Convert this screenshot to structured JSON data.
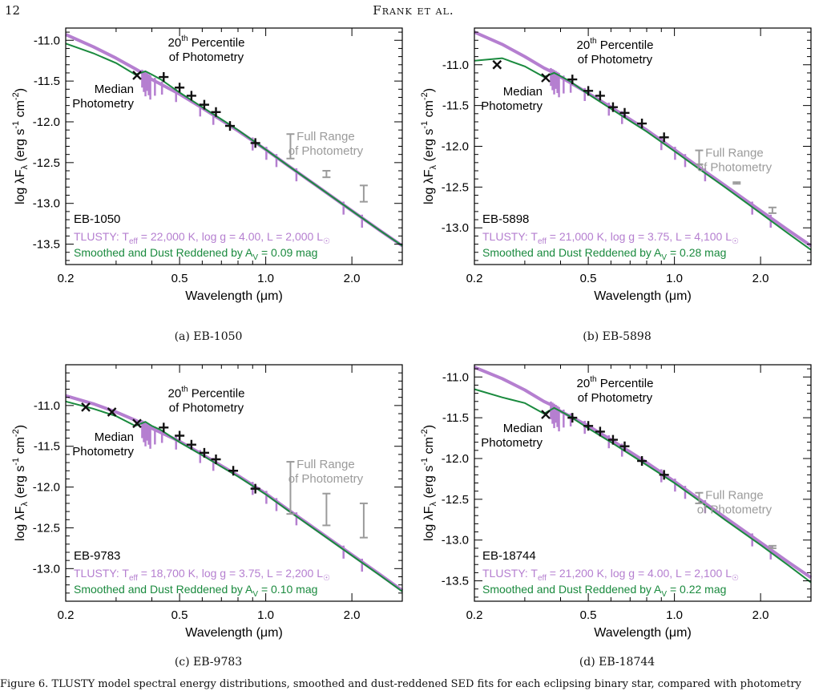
{
  "page": {
    "number": "12",
    "running_head": "Frank et al."
  },
  "caption": "Figure 6. TLUSTY model spectral energy distributions, smoothed and dust-reddened SED fits for each eclipsing binary star, compared with photometry",
  "colors": {
    "tlusty": "#b57fd0",
    "smoothed": "#1a8a3e",
    "photometry": "#111111",
    "full_range": "#9b9b9b",
    "axes": "#000000"
  },
  "common": {
    "xlabel": "Wavelength (μm)",
    "xticks": [
      0.2,
      0.5,
      1.0,
      2.0
    ],
    "xtick_labels": [
      "0.2",
      "0.5",
      "1.0",
      "2.0"
    ],
    "xlim": [
      0.2,
      3.0
    ],
    "x_scale": "log",
    "ylabel_parts": {
      "main": "log λF",
      "sub_lambda": "λ",
      "paren_open": " (erg s",
      "s_exp": "-1",
      "cm": " cm",
      "cm_exp": "-2",
      "paren_close": ")"
    },
    "label_median": [
      "Median",
      "Photometry"
    ],
    "label_percentile": {
      "num": "20",
      "sup": "th",
      "line1": " Percentile",
      "line2": "of Photometry"
    },
    "label_full_range": [
      "Full Range",
      "of Photometry"
    ],
    "tlusty_prefix": "TLUSTY: T",
    "tlusty_sub": "eff",
    "smoothed_prefix": "Smoothed and Dust Reddened by A",
    "smoothed_sub": "V",
    "lsun_unit": "L"
  },
  "chart_data": [
    {
      "type": "line",
      "subcaption": "(a) EB-1050",
      "star": "EB-1050",
      "tlusty_params": {
        "teff": " = 22,000 K, log g = 4.00, L = 2,000 L"
      },
      "av_text": " = 0.09 mag",
      "ylim": [
        -13.75,
        -10.85
      ],
      "yticks": [
        -11.0,
        -11.5,
        -12.0,
        -12.5,
        -13.0,
        -13.5
      ],
      "ytick_labels": [
        "-11.0",
        "-11.5",
        "-12.0",
        "-12.5",
        "-13.0",
        "-13.5"
      ],
      "series": [
        {
          "name": "TLUSTY",
          "x": [
            0.2,
            0.25,
            0.3,
            0.35,
            0.37,
            0.4,
            0.5,
            0.6,
            0.7,
            0.8,
            1.0,
            1.2,
            1.5,
            2.0,
            2.5,
            3.0
          ],
          "y": [
            -10.93,
            -11.08,
            -11.22,
            -11.35,
            -11.4,
            -11.48,
            -11.66,
            -11.83,
            -11.98,
            -12.11,
            -12.34,
            -12.54,
            -12.78,
            -13.09,
            -13.33,
            -13.52
          ]
        },
        {
          "name": "Smoothed",
          "x": [
            0.2,
            0.25,
            0.3,
            0.35,
            0.38,
            0.4,
            0.43,
            0.5,
            0.6,
            0.7,
            0.8,
            1.0,
            1.2,
            1.5,
            2.0,
            2.5,
            3.0
          ],
          "y": [
            -11.04,
            -11.16,
            -11.28,
            -11.42,
            -11.38,
            -11.42,
            -11.48,
            -11.64,
            -11.82,
            -11.97,
            -12.1,
            -12.34,
            -12.54,
            -12.78,
            -13.09,
            -13.33,
            -13.52
          ]
        }
      ],
      "median_points": {
        "x": [
          0.355
        ],
        "y": [
          -11.43
        ]
      },
      "percentile_points": {
        "x": [
          0.44,
          0.5,
          0.55,
          0.61,
          0.67,
          0.75,
          0.92
        ],
        "y": [
          -11.45,
          -11.58,
          -11.68,
          -11.79,
          -11.88,
          -12.05,
          -12.26
        ]
      },
      "full_range": [
        {
          "x": 1.22,
          "low": -12.45,
          "high": -12.15
        },
        {
          "x": 1.63,
          "low": -12.68,
          "high": -12.6
        },
        {
          "x": 2.2,
          "low": -12.98,
          "high": -12.78
        }
      ]
    },
    {
      "type": "line",
      "subcaption": "(b) EB-5898",
      "star": "EB-5898",
      "tlusty_params": {
        "teff": " = 21,000 K, log g = 3.75, L = 4,100 L"
      },
      "av_text": " = 0.28 mag",
      "ylim": [
        -13.45,
        -10.55
      ],
      "yticks": [
        -11.0,
        -11.5,
        -12.0,
        -12.5,
        -13.0
      ],
      "ytick_labels": [
        "-11.0",
        "-11.5",
        "-12.0",
        "-12.5",
        "-13.0"
      ],
      "series": [
        {
          "name": "TLUSTY",
          "x": [
            0.2,
            0.25,
            0.3,
            0.35,
            0.37,
            0.4,
            0.5,
            0.6,
            0.7,
            0.8,
            1.0,
            1.2,
            1.5,
            2.0,
            2.5,
            3.0
          ],
          "y": [
            -10.6,
            -10.75,
            -10.9,
            -11.04,
            -11.08,
            -11.15,
            -11.35,
            -11.52,
            -11.67,
            -11.8,
            -12.04,
            -12.24,
            -12.48,
            -12.79,
            -13.03,
            -13.22
          ]
        },
        {
          "name": "Smoothed",
          "x": [
            0.2,
            0.25,
            0.3,
            0.35,
            0.38,
            0.4,
            0.43,
            0.5,
            0.6,
            0.7,
            0.8,
            1.0,
            1.2,
            1.5,
            2.0,
            2.5,
            3.0
          ],
          "y": [
            -10.95,
            -10.92,
            -11.02,
            -11.15,
            -11.1,
            -11.14,
            -11.2,
            -11.36,
            -11.54,
            -11.69,
            -11.82,
            -12.06,
            -12.26,
            -12.5,
            -12.82,
            -13.07,
            -13.27
          ]
        }
      ],
      "median_points": {
        "x": [
          0.24,
          0.355
        ],
        "y": [
          -11.0,
          -11.16
        ]
      },
      "percentile_points": {
        "x": [
          0.44,
          0.5,
          0.55,
          0.61,
          0.67,
          0.77,
          0.92
        ],
        "y": [
          -11.18,
          -11.32,
          -11.38,
          -11.52,
          -11.59,
          -11.72,
          -11.89
        ]
      },
      "full_range": [
        {
          "x": 1.22,
          "low": -12.22,
          "high": -12.05
        },
        {
          "x": 1.65,
          "low": -12.46,
          "high": -12.44
        },
        {
          "x": 2.2,
          "low": -12.82,
          "high": -12.75
        }
      ]
    },
    {
      "type": "line",
      "subcaption": "(c) EB-9783",
      "star": "EB-9783",
      "tlusty_params": {
        "teff": " = 18,700 K, log g = 3.75, L = 2,200 L"
      },
      "av_text": " = 0.10 mag",
      "ylim": [
        -13.4,
        -10.5
      ],
      "yticks": [
        -11.0,
        -11.5,
        -12.0,
        -12.5,
        -13.0
      ],
      "ytick_labels": [
        "-11.0",
        "-11.5",
        "-12.0",
        "-12.5",
        "-13.0"
      ],
      "series": [
        {
          "name": "TLUSTY",
          "x": [
            0.2,
            0.25,
            0.3,
            0.35,
            0.37,
            0.4,
            0.5,
            0.6,
            0.7,
            0.8,
            1.0,
            1.2,
            1.5,
            2.0,
            2.5,
            3.0
          ],
          "y": [
            -10.88,
            -10.98,
            -11.08,
            -11.18,
            -11.22,
            -11.28,
            -11.44,
            -11.6,
            -11.74,
            -11.86,
            -12.08,
            -12.28,
            -12.52,
            -12.83,
            -13.07,
            -13.27
          ]
        },
        {
          "name": "Smoothed",
          "x": [
            0.2,
            0.25,
            0.3,
            0.35,
            0.38,
            0.4,
            0.43,
            0.5,
            0.6,
            0.7,
            0.8,
            1.0,
            1.2,
            1.5,
            2.0,
            2.5,
            3.0
          ],
          "y": [
            -10.95,
            -11.04,
            -11.13,
            -11.25,
            -11.2,
            -11.25,
            -11.3,
            -11.45,
            -11.61,
            -11.75,
            -11.87,
            -12.09,
            -12.29,
            -12.53,
            -12.84,
            -13.08,
            -13.28
          ]
        }
      ],
      "median_points": {
        "x": [
          0.235,
          0.29,
          0.355
        ],
        "y": [
          -11.02,
          -11.08,
          -11.22
        ]
      },
      "percentile_points": {
        "x": [
          0.44,
          0.5,
          0.55,
          0.61,
          0.67,
          0.77,
          0.92
        ],
        "y": [
          -11.27,
          -11.37,
          -11.48,
          -11.58,
          -11.66,
          -11.8,
          -12.02
        ]
      },
      "full_range": [
        {
          "x": 1.22,
          "low": -12.33,
          "high": -11.69
        },
        {
          "x": 1.63,
          "low": -12.47,
          "high": -12.08
        },
        {
          "x": 2.2,
          "low": -12.62,
          "high": -12.2
        }
      ]
    },
    {
      "type": "line",
      "subcaption": "(d) EB-18744",
      "star": "EB-18744",
      "tlusty_params": {
        "teff": " = 21,200 K, log g = 4.00, L = 2,100 L"
      },
      "av_text": " = 0.22 mag",
      "ylim": [
        -13.75,
        -10.85
      ],
      "yticks": [
        -11.0,
        -11.5,
        -12.0,
        -12.5,
        -13.0,
        -13.5
      ],
      "ytick_labels": [
        "-11.0",
        "-11.5",
        "-12.0",
        "-12.5",
        "-13.0",
        "-13.5"
      ],
      "series": [
        {
          "name": "TLUSTY",
          "x": [
            0.2,
            0.25,
            0.3,
            0.35,
            0.37,
            0.4,
            0.5,
            0.6,
            0.7,
            0.8,
            1.0,
            1.2,
            1.5,
            2.0,
            2.5,
            3.0
          ],
          "y": [
            -10.88,
            -11.02,
            -11.16,
            -11.3,
            -11.34,
            -11.42,
            -11.6,
            -11.77,
            -11.92,
            -12.05,
            -12.28,
            -12.48,
            -12.72,
            -13.03,
            -13.27,
            -13.46
          ]
        },
        {
          "name": "Smoothed",
          "x": [
            0.2,
            0.25,
            0.3,
            0.35,
            0.38,
            0.4,
            0.43,
            0.5,
            0.6,
            0.7,
            0.8,
            1.0,
            1.2,
            1.5,
            2.0,
            2.5,
            3.0
          ],
          "y": [
            -11.15,
            -11.25,
            -11.32,
            -11.45,
            -11.38,
            -11.42,
            -11.48,
            -11.63,
            -11.8,
            -11.95,
            -12.08,
            -12.3,
            -12.5,
            -12.75,
            -13.06,
            -13.31,
            -13.52
          ]
        }
      ],
      "median_points": {
        "x": [
          0.355
        ],
        "y": [
          -11.46
        ]
      },
      "percentile_points": {
        "x": [
          0.44,
          0.5,
          0.55,
          0.61,
          0.67,
          0.77,
          0.92
        ],
        "y": [
          -11.5,
          -11.6,
          -11.67,
          -11.77,
          -11.85,
          -12.03,
          -12.2
        ]
      },
      "full_range": [
        {
          "x": 1.22,
          "low": -12.55,
          "high": -12.42
        },
        {
          "x": 2.2,
          "low": -13.1,
          "high": -13.07
        }
      ]
    }
  ]
}
